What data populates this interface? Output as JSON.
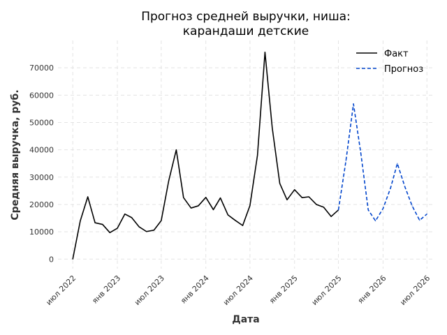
{
  "chart_data": {
    "type": "line",
    "title_lines": [
      "Прогноз средней выручки, ниша:",
      "карандаши детские"
    ],
    "xlabel": "Дата",
    "ylabel": "Средняя выручка, руб.",
    "ylim": [
      -3500,
      80000
    ],
    "y_ticks": [
      0,
      10000,
      20000,
      30000,
      40000,
      50000,
      60000,
      70000
    ],
    "x_range": [
      "2022-05-01",
      "2026-08-01"
    ],
    "x_ticks": [
      {
        "date": "2022-07-01",
        "label": "июл 2022"
      },
      {
        "date": "2023-01-01",
        "label": "янв 2023"
      },
      {
        "date": "2023-07-01",
        "label": "июл 2023"
      },
      {
        "date": "2024-01-01",
        "label": "янв 2024"
      },
      {
        "date": "2024-07-01",
        "label": "июл 2024"
      },
      {
        "date": "2025-01-01",
        "label": "янв 2025"
      },
      {
        "date": "2025-07-01",
        "label": "июл 2025"
      },
      {
        "date": "2026-01-01",
        "label": "янв 2026"
      },
      {
        "date": "2026-07-01",
        "label": "июл 2026"
      }
    ],
    "grid": true,
    "legend_position": "top-right",
    "series": [
      {
        "name": "Факт",
        "color": "#000000",
        "style": "solid",
        "points": [
          [
            "2022-07-01",
            0
          ],
          [
            "2022-08-01",
            14000
          ],
          [
            "2022-09-01",
            22800
          ],
          [
            "2022-10-01",
            13300
          ],
          [
            "2022-11-01",
            12700
          ],
          [
            "2022-12-01",
            9700
          ],
          [
            "2023-01-01",
            11300
          ],
          [
            "2023-02-01",
            16500
          ],
          [
            "2023-03-01",
            15200
          ],
          [
            "2023-04-01",
            11800
          ],
          [
            "2023-05-01",
            10100
          ],
          [
            "2023-06-01",
            10600
          ],
          [
            "2023-07-01",
            14100
          ],
          [
            "2023-08-01",
            28700
          ],
          [
            "2023-09-01",
            40000
          ],
          [
            "2023-10-01",
            22500
          ],
          [
            "2023-11-01",
            18700
          ],
          [
            "2023-12-01",
            19500
          ],
          [
            "2024-01-01",
            22600
          ],
          [
            "2024-02-01",
            18100
          ],
          [
            "2024-03-01",
            22400
          ],
          [
            "2024-04-01",
            16200
          ],
          [
            "2024-05-01",
            14200
          ],
          [
            "2024-06-01",
            12300
          ],
          [
            "2024-07-01",
            19600
          ],
          [
            "2024-08-01",
            38000
          ],
          [
            "2024-09-01",
            75700
          ],
          [
            "2024-10-01",
            48000
          ],
          [
            "2024-11-01",
            27700
          ],
          [
            "2024-12-01",
            21700
          ],
          [
            "2025-01-01",
            25400
          ],
          [
            "2025-02-01",
            22500
          ],
          [
            "2025-03-01",
            22800
          ],
          [
            "2025-04-01",
            20000
          ],
          [
            "2025-05-01",
            19000
          ],
          [
            "2025-06-01",
            15600
          ],
          [
            "2025-07-01",
            18000
          ]
        ]
      },
      {
        "name": "Прогноз",
        "color": "#0044cc",
        "style": "dashed",
        "points": [
          [
            "2025-07-01",
            18000
          ],
          [
            "2025-08-01",
            36000
          ],
          [
            "2025-09-01",
            56800
          ],
          [
            "2025-10-01",
            39000
          ],
          [
            "2025-11-01",
            18000
          ],
          [
            "2025-12-01",
            14000
          ],
          [
            "2026-01-01",
            18500
          ],
          [
            "2026-02-01",
            26000
          ],
          [
            "2026-03-01",
            35000
          ],
          [
            "2026-04-01",
            26500
          ],
          [
            "2026-05-01",
            19500
          ],
          [
            "2026-06-01",
            14200
          ],
          [
            "2026-07-01",
            16500
          ]
        ]
      }
    ]
  }
}
